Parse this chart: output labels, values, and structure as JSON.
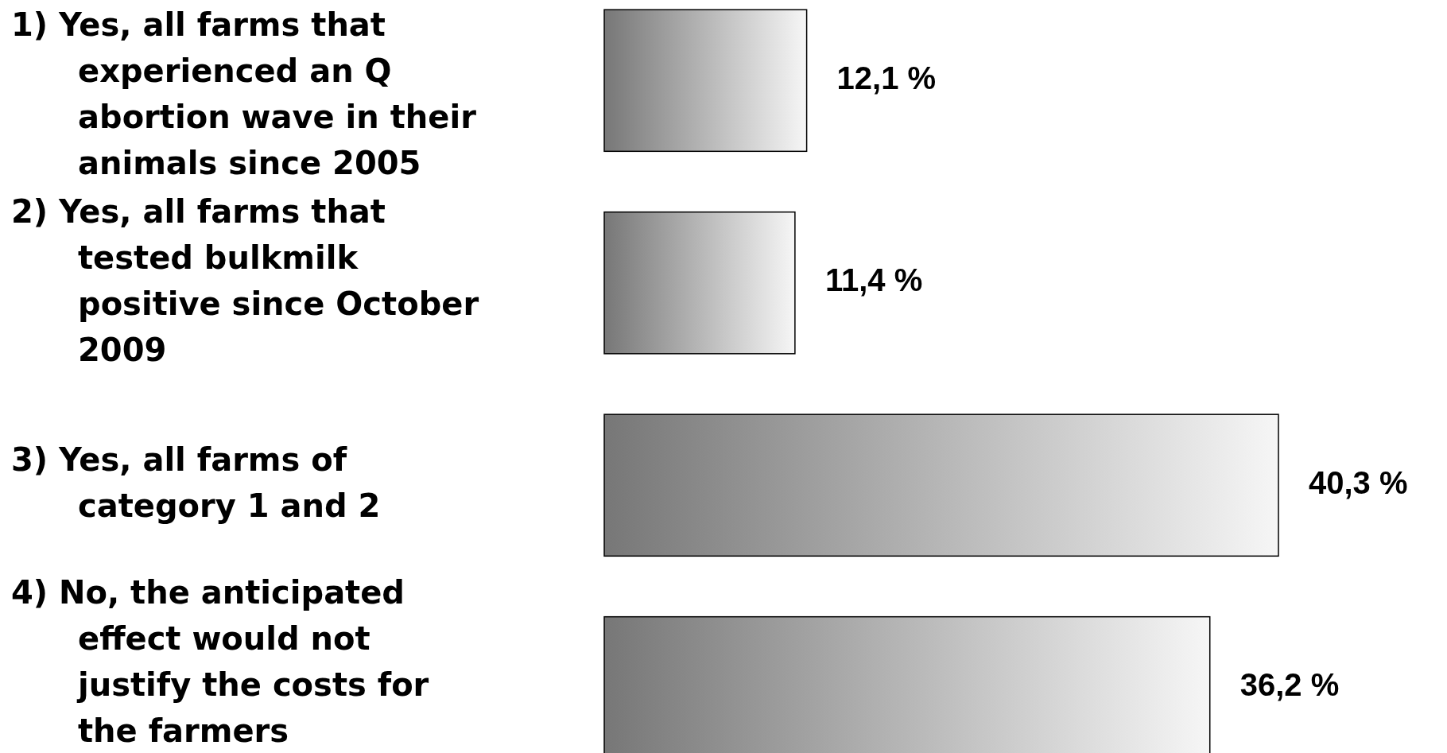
{
  "chart_data": {
    "type": "bar",
    "orientation": "horizontal",
    "categories": [
      "1) Yes, all farms that experienced an Q abortion wave in their animals since 2005",
      "2) Yes, all farms that tested bulkmilk positive since October 2009",
      "3) Yes, all farms of category 1 and 2",
      "4) No, the anticipated effect would not justify the costs for the farmers"
    ],
    "values": [
      12.1,
      11.4,
      40.3,
      36.2
    ],
    "value_labels": [
      "12,1 %",
      "11,4 %",
      "40,3 %",
      "36,2 %"
    ],
    "color": "#777777"
  }
}
